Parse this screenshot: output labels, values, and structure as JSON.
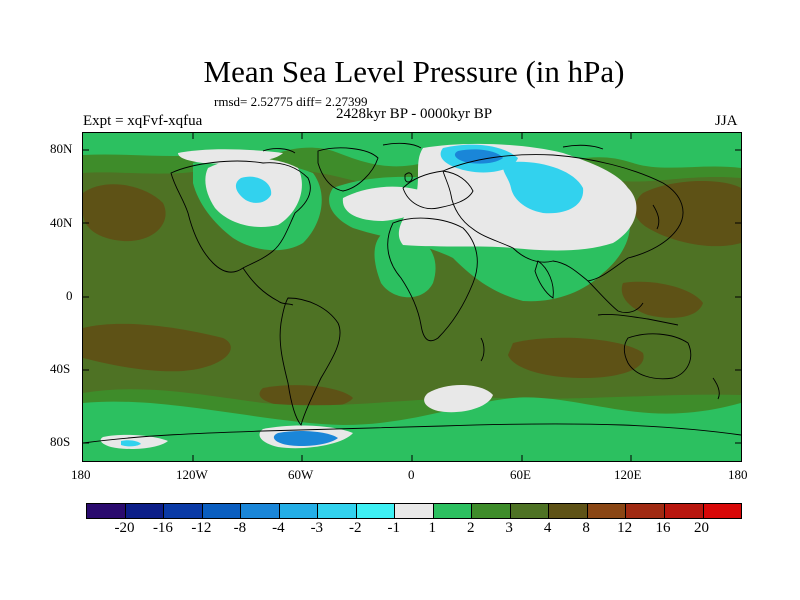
{
  "title": "Mean Sea Level Pressure (in hPa)",
  "stats": "rmsd= 2.52775 diff= 2.27399",
  "subtitle": "2428kyr BP - 0000kyr BP",
  "experiment": "Expt = xqFvf-xqfua",
  "season": "JJA",
  "lat_labels": [
    "80N",
    "40N",
    "0",
    "40S",
    "80S"
  ],
  "lon_labels": [
    "180",
    "120W",
    "60W",
    "0",
    "60E",
    "120E",
    "180"
  ],
  "colorbar": {
    "labels": [
      "-20",
      "-16",
      "-12",
      "-8",
      "-4",
      "-3",
      "-2",
      "-1",
      "1",
      "2",
      "3",
      "4",
      "8",
      "12",
      "16",
      "20"
    ],
    "colors": [
      "#2a0a6e",
      "#0c1e88",
      "#0a3aa6",
      "#0a5ec0",
      "#1a86d8",
      "#24aee6",
      "#32d2ee",
      "#3ef0f4",
      "#e8e8e8",
      "#2cc060",
      "#3e8c2a",
      "#4e7224",
      "#5e5216",
      "#8a4614",
      "#a02a12",
      "#b8160e",
      "#d80808"
    ]
  },
  "colors": {
    "bg_field": "#4e7224",
    "strong_positive": "#5e5216",
    "weak_positive": "#3e8c2a",
    "near_zero_pos": "#2cc060",
    "near_zero": "#e8e8e8",
    "weak_negative": "#32d2ee",
    "negative": "#1a86d8"
  }
}
